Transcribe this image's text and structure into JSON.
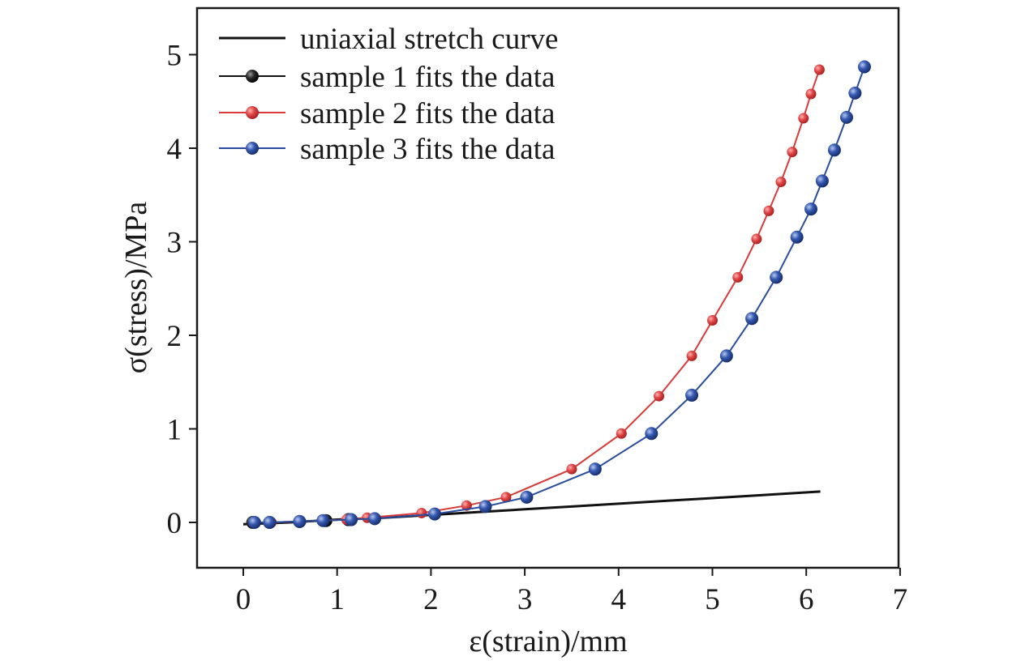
{
  "chart_data": {
    "type": "line",
    "title": "",
    "xlabel": "ε(strain)/mm",
    "ylabel": "σ(stress)/MPa",
    "xlim": [
      -0.5,
      7
    ],
    "ylim": [
      -0.5,
      5.5
    ],
    "xticks": [
      0,
      1,
      2,
      3,
      4,
      5,
      6,
      7
    ],
    "yticks": [
      0,
      1,
      2,
      3,
      4,
      5
    ],
    "grid": false,
    "legend_position": "top-left",
    "series": [
      {
        "name": "uniaxial stretch curve",
        "color": "#111111",
        "marker": "none",
        "x": [
          0,
          0.5,
          1.0,
          1.5,
          2.0,
          2.5,
          3.0,
          3.5,
          4.0,
          4.5,
          5.0,
          5.5,
          6.15
        ],
        "y": [
          -0.02,
          0.0,
          0.03,
          0.05,
          0.08,
          0.11,
          0.14,
          0.17,
          0.2,
          0.23,
          0.26,
          0.29,
          0.33
        ]
      },
      {
        "name": "sample 1 fits the data",
        "color": "#111111",
        "marker": "circle",
        "x": [
          0.1,
          0.28,
          0.6,
          0.88,
          1.12
        ],
        "y": [
          0.0,
          0.0,
          0.01,
          0.02,
          0.03
        ]
      },
      {
        "name": "sample 2 fits the data",
        "color": "#d93a3a",
        "marker": "circle",
        "x": [
          0.12,
          0.3,
          0.6,
          0.85,
          1.1,
          1.32,
          1.9,
          2.38,
          2.8,
          3.5,
          4.03,
          4.43,
          4.78,
          5.0,
          5.27,
          5.47,
          5.6,
          5.73,
          5.85,
          5.97,
          6.05,
          6.14
        ],
        "y": [
          0.0,
          0.0,
          0.01,
          0.02,
          0.03,
          0.05,
          0.1,
          0.18,
          0.27,
          0.57,
          0.95,
          1.35,
          1.78,
          2.16,
          2.62,
          3.03,
          3.33,
          3.64,
          3.96,
          4.32,
          4.58,
          4.84
        ]
      },
      {
        "name": "sample 3 fits the data",
        "color": "#2a4d9e",
        "marker": "circle",
        "x": [
          0.12,
          0.28,
          0.6,
          0.85,
          1.15,
          1.4,
          2.04,
          2.58,
          3.02,
          3.75,
          4.35,
          4.78,
          5.15,
          5.42,
          5.68,
          5.9,
          6.05,
          6.17,
          6.3,
          6.43,
          6.52,
          6.62
        ],
        "y": [
          0.0,
          0.0,
          0.01,
          0.02,
          0.03,
          0.04,
          0.09,
          0.17,
          0.27,
          0.57,
          0.95,
          1.36,
          1.78,
          2.18,
          2.62,
          3.05,
          3.35,
          3.65,
          3.98,
          4.33,
          4.59,
          4.87
        ]
      }
    ]
  }
}
